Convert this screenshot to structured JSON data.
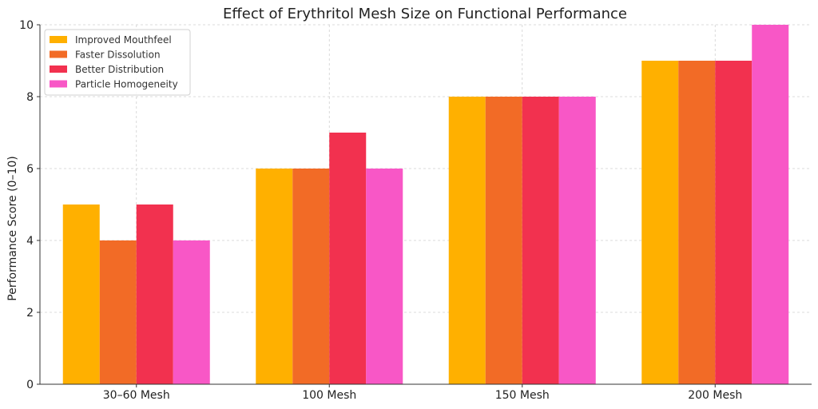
{
  "chart_data": {
    "type": "bar",
    "title": "Effect of Erythritol Mesh Size on Functional Performance",
    "xlabel": "",
    "ylabel": "Performance Score (0–10)",
    "categories": [
      "30–60 Mesh",
      "100 Mesh",
      "150 Mesh",
      "200 Mesh"
    ],
    "ylim": [
      0,
      10
    ],
    "yticks": [
      "0",
      "2",
      "4",
      "6",
      "8",
      "10"
    ],
    "grid": true,
    "legend_position": "top-left",
    "series": [
      {
        "name": "Improved Mouthfeel",
        "color": "#FFB000",
        "values": [
          5,
          6,
          8,
          9
        ]
      },
      {
        "name": "Faster Dissolution",
        "color": "#F26B26",
        "values": [
          4,
          6,
          8,
          9
        ]
      },
      {
        "name": "Better Distribution",
        "color": "#F2314F",
        "values": [
          5,
          7,
          8,
          9
        ]
      },
      {
        "name": "Particle Homogeneity",
        "color": "#F857C6",
        "values": [
          4,
          6,
          8,
          10
        ]
      }
    ]
  }
}
